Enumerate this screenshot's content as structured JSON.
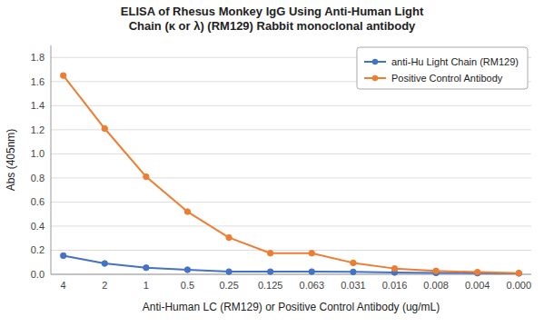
{
  "chart_data": {
    "type": "line",
    "title": "ELISA of Rhesus Monkey IgG Using Anti-Human Light\nChain (κ or λ) (RM129) Rabbit monoclonal antibody",
    "x_label": "Anti-Human LC (RM129) or Positive Control Antibody (ug/mL)",
    "y_label": "Abs (405nm)",
    "categories": [
      "4",
      "2",
      "1",
      "0.5",
      "0.25",
      "0.125",
      "0.063",
      "0.031",
      "0.016",
      "0.008",
      "0.004",
      "0.000"
    ],
    "series": [
      {
        "name": "anti-Hu Light Chain (RM129)",
        "color": "#4472C4",
        "marker": "circle",
        "values": [
          0.155,
          0.09,
          0.055,
          0.038,
          0.022,
          0.022,
          0.022,
          0.02,
          0.015,
          0.012,
          0.01,
          0.008
        ]
      },
      {
        "name": "Positive Control Antibody",
        "color": "#ED7D31",
        "marker": "circle",
        "values": [
          1.65,
          1.21,
          0.81,
          0.52,
          0.305,
          0.175,
          0.175,
          0.095,
          0.048,
          0.028,
          0.018,
          0.01
        ]
      }
    ],
    "ylim": [
      0.0,
      1.9
    ],
    "yticks": [
      {
        "value": 0.0,
        "label": "0.0"
      },
      0.2,
      0.4,
      0.6,
      0.8,
      {
        "value": 1.0,
        "label": "1.0"
      },
      1.2,
      1.4,
      1.6,
      1.8
    ],
    "grid": true,
    "legend": "upper right"
  }
}
